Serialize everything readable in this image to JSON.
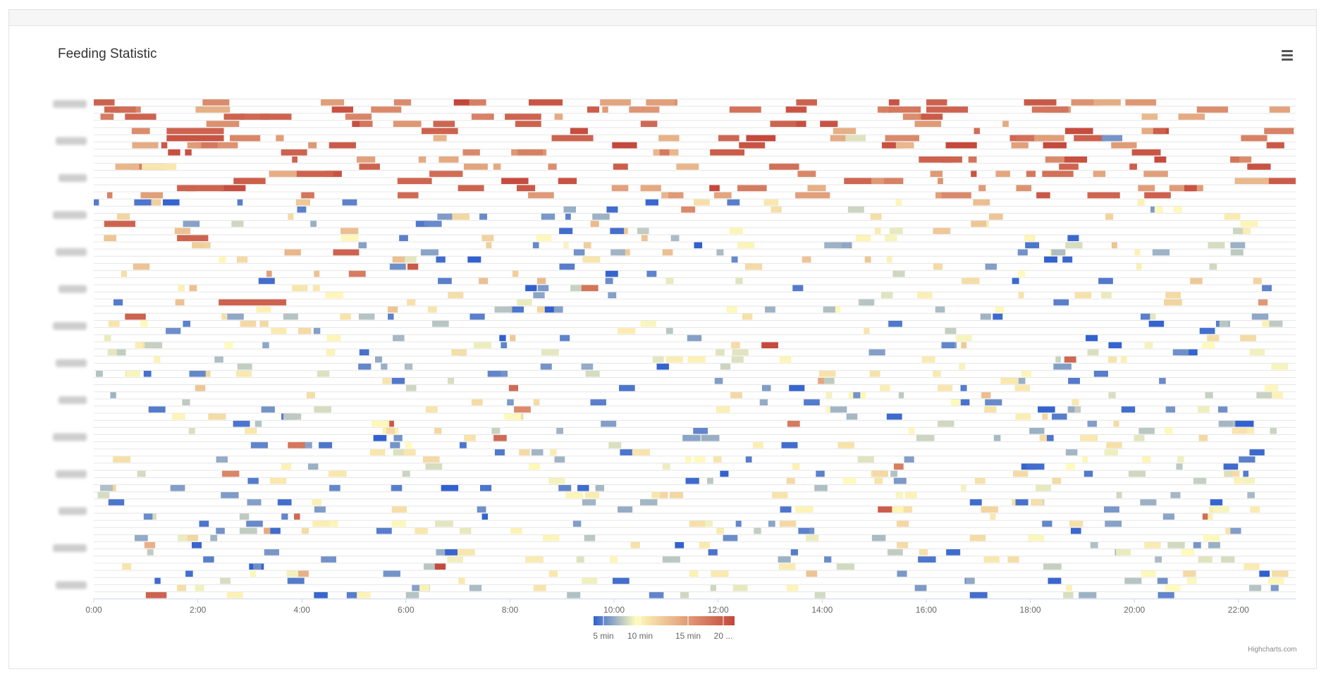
{
  "title": "Feeding Statistic",
  "credits": "Highcharts.com",
  "menu_icon": "hamburger-menu-icon",
  "chart_data": {
    "type": "heatmap",
    "title": "Feeding Statistic",
    "xlabel": "",
    "ylabel": "",
    "x_ticks": [
      "0:00",
      "2:00",
      "4:00",
      "6:00",
      "8:00",
      "10:00",
      "12:00",
      "14:00",
      "16:00",
      "18:00",
      "20:00",
      "22:00"
    ],
    "x_range_hours": [
      0,
      23.1
    ],
    "y_rows": 70,
    "y_tick_labels_blurred": true,
    "grid": true,
    "value_unit": "min",
    "color_scale": {
      "min": 4,
      "max": 22,
      "stops": [
        "#3060cf",
        "#fffbbc",
        "#c4463a"
      ],
      "labels": [
        "5 min",
        "10 min",
        "15 min",
        "20 ..."
      ],
      "legend_position": "bottom-center"
    },
    "density_note_rows": [
      {
        "row_range": [
          0,
          14
        ],
        "dominant_range_min": [
          14,
          22
        ]
      },
      {
        "row_range": [
          14,
          30
        ],
        "dominant_range_min": [
          4,
          14
        ]
      },
      {
        "row_range": [
          30,
          70
        ],
        "dominant_range_min": [
          4,
          12
        ]
      }
    ],
    "sample_cells": [
      {
        "row": 0,
        "start": 0.0,
        "end": 0.4,
        "value": 20
      },
      {
        "row": 0,
        "start": 16.0,
        "end": 16.4,
        "value": 20
      },
      {
        "row": 0,
        "start": 13.5,
        "end": 13.9,
        "value": 20
      },
      {
        "row": 1,
        "start": 13.3,
        "end": 13.7,
        "value": 21
      },
      {
        "row": 1,
        "start": 16.0,
        "end": 16.8,
        "value": 20
      },
      {
        "row": 1,
        "start": 21.2,
        "end": 21.8,
        "value": 17
      },
      {
        "row": 2,
        "start": 0.6,
        "end": 1.2,
        "value": 20
      },
      {
        "row": 2,
        "start": 2.5,
        "end": 2.9,
        "value": 20
      },
      {
        "row": 2,
        "start": 3.2,
        "end": 3.8,
        "value": 20
      },
      {
        "row": 2,
        "start": 7.9,
        "end": 8.6,
        "value": 20
      },
      {
        "row": 3,
        "start": 8.1,
        "end": 8.6,
        "value": 20
      },
      {
        "row": 3,
        "start": 13.0,
        "end": 13.5,
        "value": 20
      },
      {
        "row": 4,
        "start": 1.4,
        "end": 2.5,
        "value": 20
      },
      {
        "row": 4,
        "start": 6.3,
        "end": 7.0,
        "value": 20
      },
      {
        "row": 5,
        "start": 1.4,
        "end": 2.5,
        "value": 21
      },
      {
        "row": 5,
        "start": 8.8,
        "end": 9.6,
        "value": 20
      },
      {
        "row": 6,
        "start": 12.4,
        "end": 12.9,
        "value": 21
      },
      {
        "row": 7,
        "start": 3.6,
        "end": 4.1,
        "value": 20
      },
      {
        "row": 9,
        "start": 5.1,
        "end": 5.5,
        "value": 20
      },
      {
        "row": 10,
        "start": 3.9,
        "end": 4.6,
        "value": 20
      },
      {
        "row": 12,
        "start": 1.6,
        "end": 2.5,
        "value": 20
      },
      {
        "row": 12,
        "start": 7.0,
        "end": 7.5,
        "value": 20
      },
      {
        "row": 14,
        "start": 0.0,
        "end": 0.1,
        "value": 5
      },
      {
        "row": 17,
        "start": 0.2,
        "end": 0.8,
        "value": 20
      },
      {
        "row": 19,
        "start": 1.6,
        "end": 2.2,
        "value": 20
      },
      {
        "row": 21,
        "start": 4.6,
        "end": 5.1,
        "value": 20
      },
      {
        "row": 28,
        "start": 2.4,
        "end": 3.7,
        "value": 20
      },
      {
        "row": 30,
        "start": 0.6,
        "end": 1.0,
        "value": 20
      },
      {
        "row": 66,
        "start": 22.4,
        "end": 22.6,
        "value": 4
      },
      {
        "row": 69,
        "start": 1.0,
        "end": 1.4,
        "value": 20
      }
    ]
  }
}
